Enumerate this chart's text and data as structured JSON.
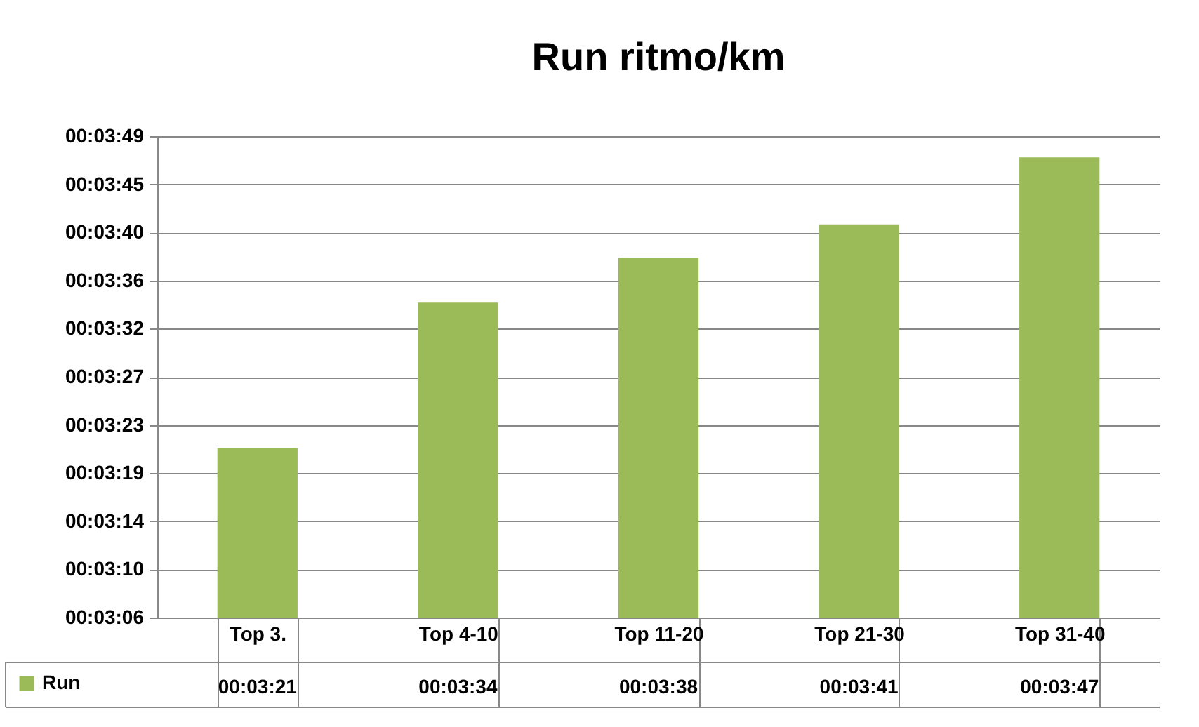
{
  "chart_data": {
    "type": "bar",
    "title": "Run ritmo/km",
    "categories": [
      "Top 3.",
      "Top 4-10",
      "Top 11-20",
      "Top 21-30",
      "Top 31-40"
    ],
    "series": [
      {
        "name": "Run",
        "color": "#9bbb59",
        "values": [
          201,
          214,
          218,
          221,
          227
        ],
        "value_labels": [
          "00:03:21",
          "00:03:34",
          "00:03:38",
          "00:03:41",
          "00:03:47"
        ]
      }
    ],
    "ylim": [
      185.8,
      228.9
    ],
    "yticks": [
      {
        "value": 185.8,
        "label": "00:03:06"
      },
      {
        "value": 190.11,
        "label": "00:03:10"
      },
      {
        "value": 194.42,
        "label": "00:03:14"
      },
      {
        "value": 198.73,
        "label": "00:03:19"
      },
      {
        "value": 203.04,
        "label": "00:03:23"
      },
      {
        "value": 207.35,
        "label": "00:03:27"
      },
      {
        "value": 211.66,
        "label": "00:03:32"
      },
      {
        "value": 215.97,
        "label": "00:03:36"
      },
      {
        "value": 220.28,
        "label": "00:03:40"
      },
      {
        "value": 224.59,
        "label": "00:03:45"
      },
      {
        "value": 228.9,
        "label": "00:03:49"
      }
    ],
    "grid": "y",
    "legend": "bottom left"
  }
}
